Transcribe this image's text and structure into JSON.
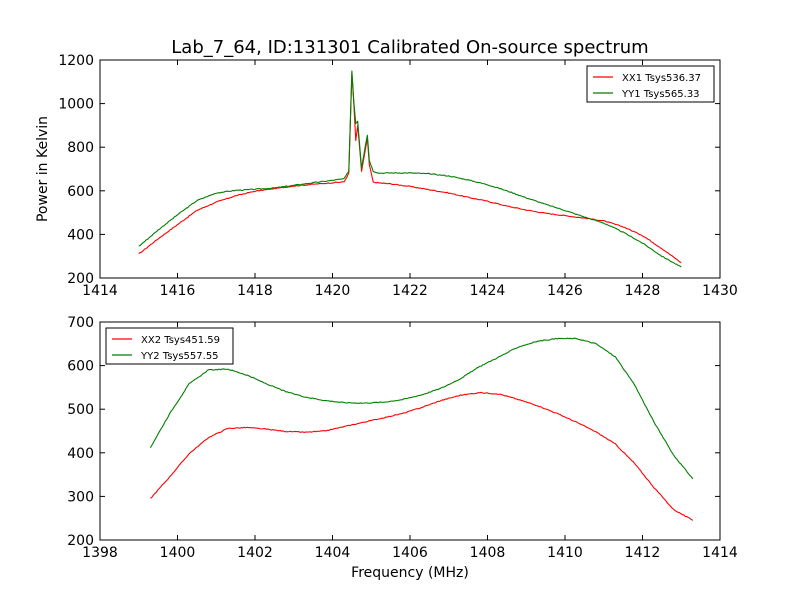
{
  "figure": {
    "title": "Lab_7_64, ID:131301 Calibrated On-source spectrum",
    "ylabel_top": "Power in Kelvin",
    "xlabel_bottom": "Frequency (MHz)"
  },
  "colors": {
    "red": "#ff0000",
    "green": "#007f00",
    "axes": "#000000",
    "background": "#ffffff"
  },
  "chart_data": [
    {
      "type": "line",
      "title": "Lab_7_64, ID:131301 Calibrated On-source spectrum",
      "xlabel": "",
      "ylabel": "Power in Kelvin",
      "xlim": [
        1414,
        1430
      ],
      "ylim": [
        200,
        1200
      ],
      "xticks": [
        1414,
        1416,
        1418,
        1420,
        1422,
        1424,
        1426,
        1428,
        1430
      ],
      "yticks": [
        200,
        400,
        600,
        800,
        1000,
        1200
      ],
      "grid": false,
      "legend_position": "top-right",
      "series": [
        {
          "name": "XX1 Tsys536.37",
          "color": "#ff0000",
          "x": [
            1415.0,
            1415.5,
            1416.0,
            1416.5,
            1417.0,
            1417.5,
            1418.0,
            1418.5,
            1419.0,
            1419.5,
            1420.0,
            1420.3,
            1420.42,
            1420.5,
            1420.55,
            1420.6,
            1420.65,
            1420.75,
            1420.85,
            1420.9,
            1420.95,
            1421.05,
            1421.2,
            1421.5,
            1422.0,
            1422.5,
            1423.0,
            1423.5,
            1424.0,
            1424.5,
            1425.0,
            1425.5,
            1426.0,
            1426.5,
            1427.0,
            1427.5,
            1428.0,
            1428.5,
            1429.0
          ],
          "values": [
            310,
            380,
            445,
            510,
            548,
            577,
            598,
            610,
            622,
            630,
            637,
            641,
            680,
            1140,
            1000,
            830,
            900,
            690,
            790,
            840,
            720,
            640,
            636,
            632,
            620,
            605,
            590,
            570,
            552,
            530,
            512,
            497,
            486,
            475,
            462,
            435,
            395,
            335,
            270
          ]
        },
        {
          "name": "YY1 Tsys565.33",
          "color": "#007f00",
          "x": [
            1415.0,
            1415.5,
            1416.0,
            1416.5,
            1417.0,
            1417.5,
            1418.0,
            1418.5,
            1419.0,
            1419.5,
            1420.0,
            1420.3,
            1420.42,
            1420.5,
            1420.55,
            1420.6,
            1420.65,
            1420.75,
            1420.85,
            1420.9,
            1420.95,
            1421.05,
            1421.2,
            1421.5,
            1422.0,
            1422.5,
            1423.0,
            1423.5,
            1424.0,
            1424.5,
            1425.0,
            1425.5,
            1426.0,
            1426.5,
            1427.0,
            1427.5,
            1428.0,
            1428.5,
            1429.0
          ],
          "values": [
            345,
            420,
            490,
            555,
            590,
            602,
            607,
            613,
            625,
            637,
            648,
            655,
            690,
            1150,
            1010,
            910,
            920,
            705,
            810,
            855,
            740,
            690,
            681,
            682,
            682,
            678,
            668,
            650,
            628,
            600,
            568,
            538,
            510,
            480,
            452,
            410,
            360,
            300,
            250
          ]
        }
      ]
    },
    {
      "type": "line",
      "title": "",
      "xlabel": "Frequency (MHz)",
      "ylabel": "",
      "xlim": [
        1398,
        1414
      ],
      "ylim": [
        200,
        700
      ],
      "xticks": [
        1398,
        1400,
        1402,
        1404,
        1406,
        1408,
        1410,
        1412,
        1414
      ],
      "yticks": [
        200,
        300,
        400,
        500,
        600,
        700
      ],
      "grid": false,
      "legend_position": "top-left",
      "series": [
        {
          "name": "XX2 Tsys451.59",
          "color": "#ff0000",
          "x": [
            1399.3,
            1399.8,
            1400.3,
            1400.8,
            1401.3,
            1401.8,
            1402.3,
            1402.8,
            1403.3,
            1403.8,
            1404.3,
            1404.8,
            1405.3,
            1405.8,
            1406.3,
            1406.8,
            1407.3,
            1407.8,
            1408.3,
            1408.8,
            1409.3,
            1409.8,
            1410.3,
            1410.8,
            1411.3,
            1411.8,
            1412.3,
            1412.8,
            1413.3
          ],
          "values": [
            295,
            345,
            398,
            435,
            456,
            458,
            454,
            449,
            447,
            450,
            460,
            470,
            480,
            490,
            504,
            520,
            532,
            538,
            535,
            522,
            508,
            490,
            470,
            448,
            420,
            375,
            320,
            270,
            245
          ]
        },
        {
          "name": "YY2 Tsys557.55",
          "color": "#007f00",
          "x": [
            1399.3,
            1399.8,
            1400.3,
            1400.8,
            1401.3,
            1401.8,
            1402.3,
            1402.8,
            1403.3,
            1403.8,
            1404.3,
            1404.8,
            1405.3,
            1405.8,
            1406.3,
            1406.8,
            1407.3,
            1407.8,
            1408.3,
            1408.8,
            1409.3,
            1409.8,
            1410.3,
            1410.8,
            1411.3,
            1411.8,
            1412.3,
            1412.8,
            1413.3
          ],
          "values": [
            412,
            490,
            558,
            590,
            592,
            578,
            558,
            540,
            528,
            520,
            515,
            514,
            516,
            522,
            533,
            548,
            570,
            598,
            620,
            643,
            656,
            662,
            662,
            650,
            620,
            555,
            470,
            395,
            340
          ]
        }
      ]
    }
  ]
}
